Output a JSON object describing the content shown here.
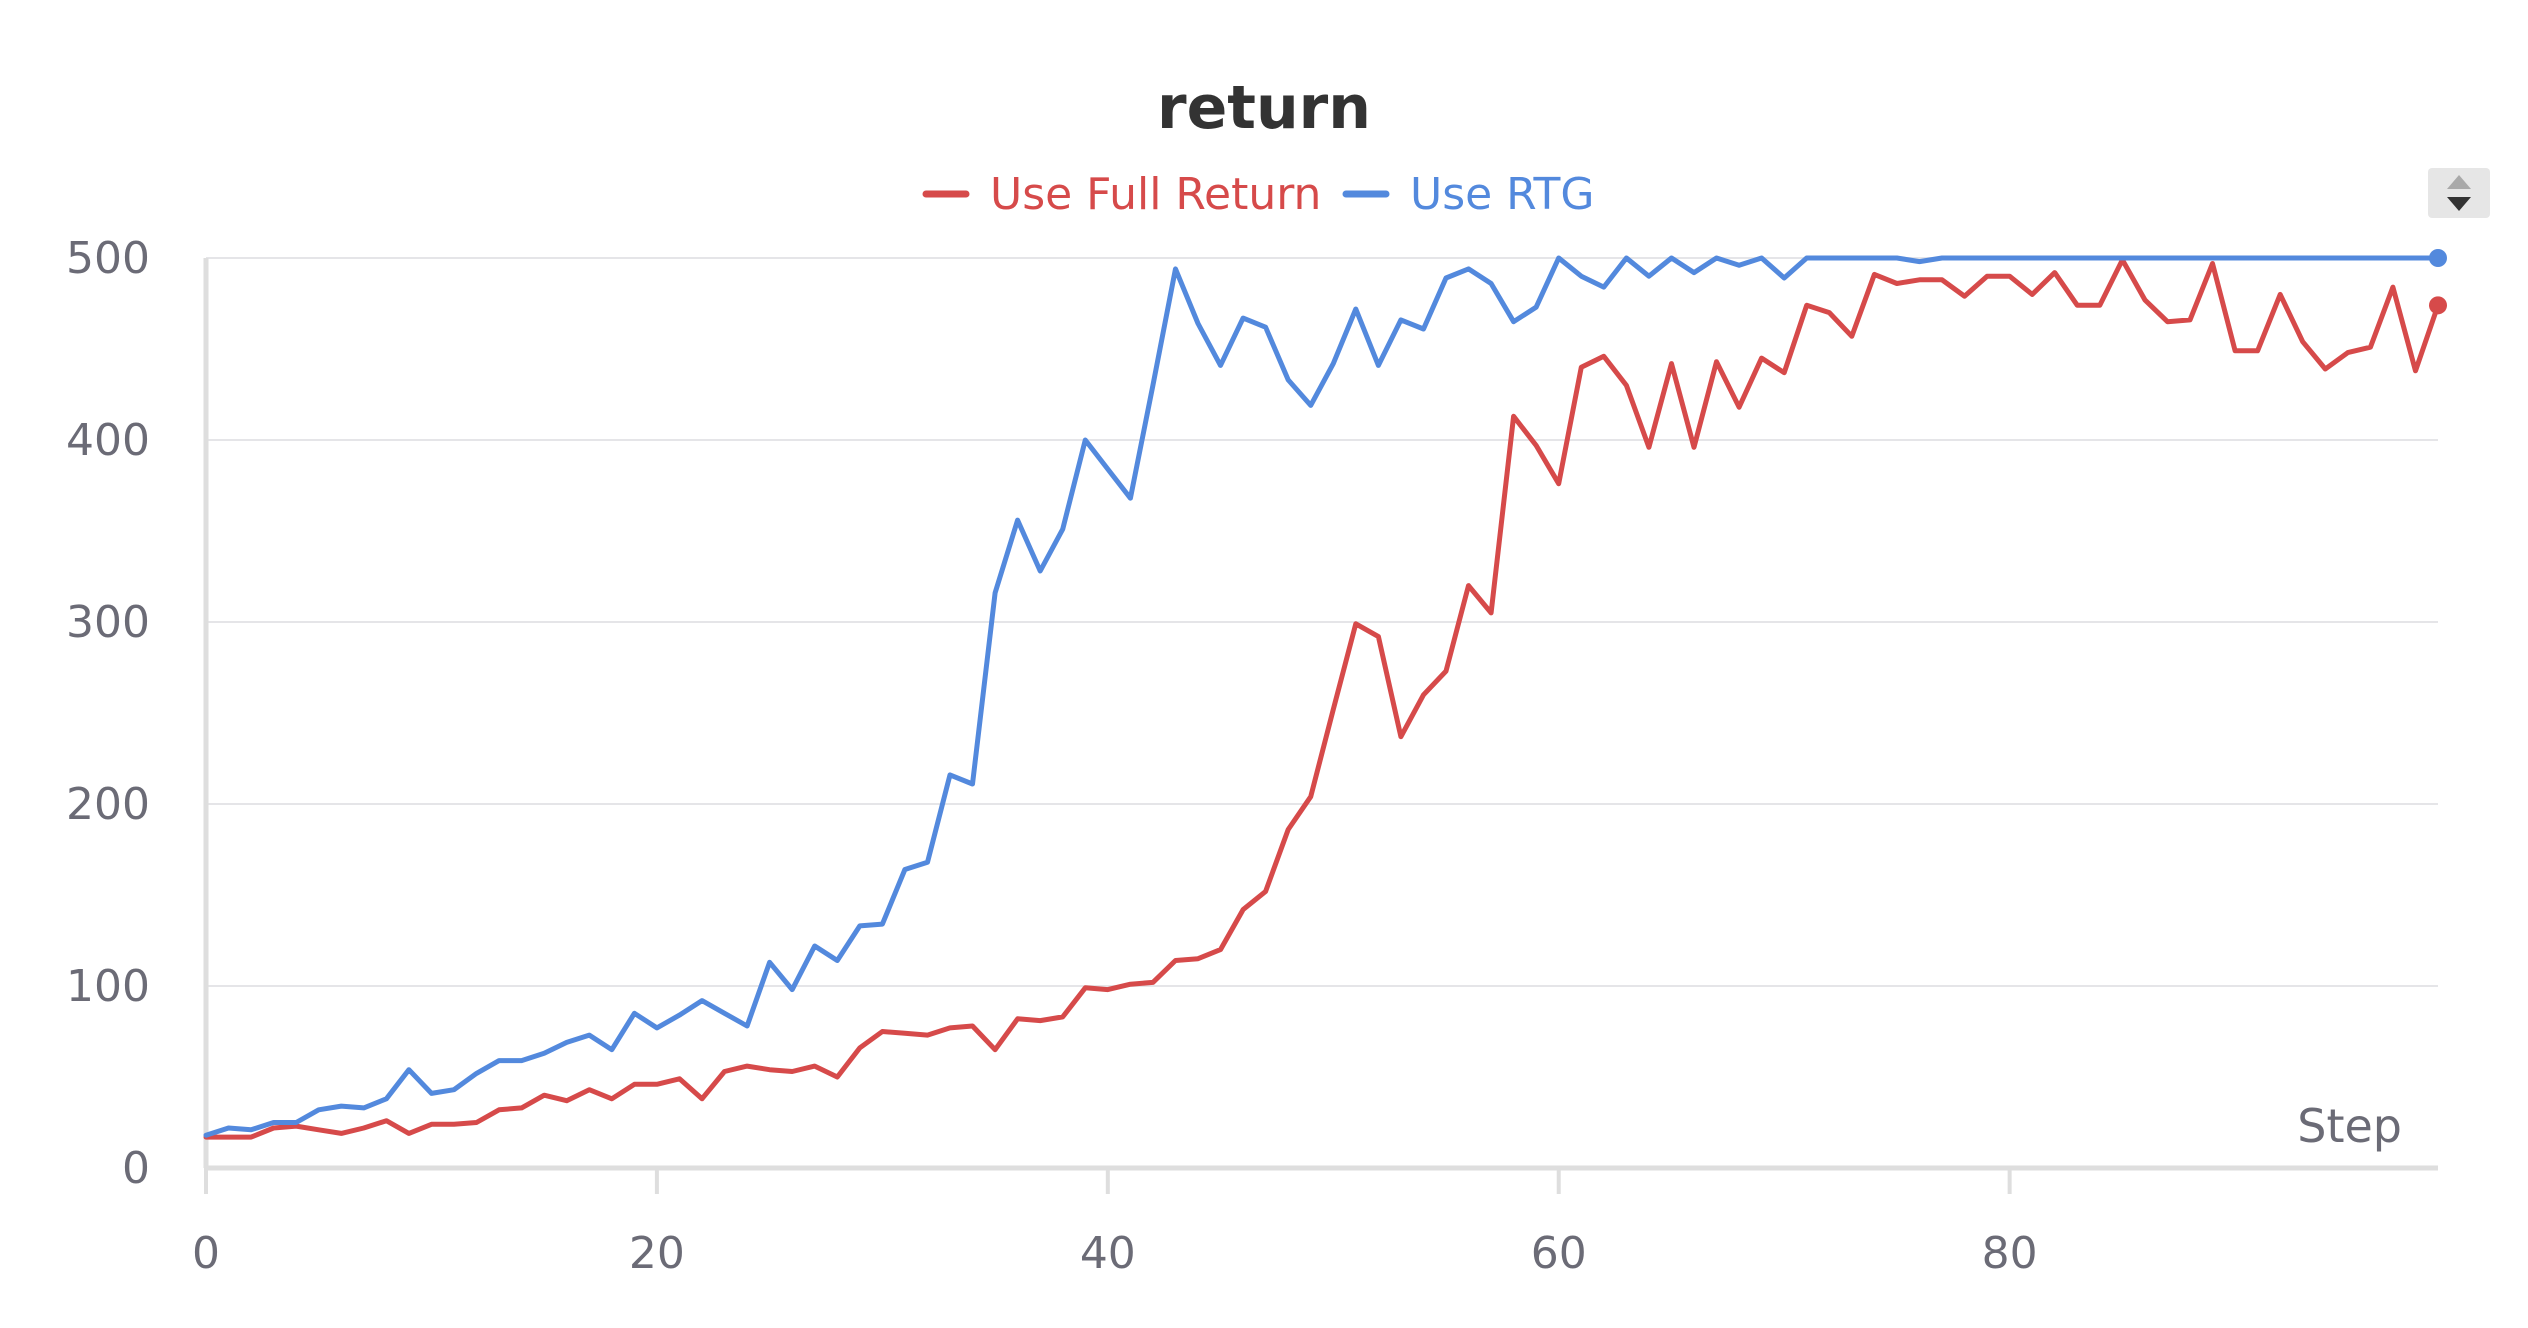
{
  "chart_data": {
    "type": "line",
    "title": "return",
    "xlabel": "Step",
    "ylabel": "",
    "xlim": [
      0,
      99
    ],
    "ylim": [
      0,
      500
    ],
    "xticks": [
      0,
      20,
      40,
      60,
      80
    ],
    "yticks": [
      0,
      100,
      200,
      300,
      400,
      500
    ],
    "grid": true,
    "legend_position": "top-center",
    "x": [
      0,
      1,
      2,
      3,
      4,
      5,
      6,
      7,
      8,
      9,
      10,
      11,
      12,
      13,
      14,
      15,
      16,
      17,
      18,
      19,
      20,
      21,
      22,
      23,
      24,
      25,
      26,
      27,
      28,
      29,
      30,
      31,
      32,
      33,
      34,
      35,
      36,
      37,
      38,
      39,
      40,
      41,
      42,
      43,
      44,
      45,
      46,
      47,
      48,
      49,
      50,
      51,
      52,
      53,
      54,
      55,
      56,
      57,
      58,
      59,
      60,
      61,
      62,
      63,
      64,
      65,
      66,
      67,
      68,
      69,
      70,
      71,
      72,
      73,
      74,
      75,
      76,
      77,
      78,
      79,
      80,
      81,
      82,
      83,
      84,
      85,
      86,
      87,
      88,
      89,
      90,
      91,
      92,
      93,
      94,
      95,
      96,
      97,
      98,
      99
    ],
    "series": [
      {
        "name": "Use Full Return",
        "color": "#d64a4a",
        "values": [
          17,
          17,
          17,
          22,
          23,
          21,
          19,
          22,
          26,
          19,
          24,
          24,
          25,
          32,
          33,
          40,
          37,
          43,
          38,
          46,
          46,
          49,
          38,
          53,
          56,
          54,
          53,
          56,
          50,
          66,
          75,
          74,
          73,
          77,
          78,
          65,
          82,
          81,
          83,
          99,
          98,
          101,
          102,
          114,
          115,
          120,
          142,
          152,
          186,
          204,
          252,
          299,
          292,
          237,
          260,
          273,
          320,
          305,
          413,
          397,
          376,
          440,
          446,
          430,
          396,
          442,
          396,
          443,
          418,
          445,
          437,
          474,
          470,
          457,
          491,
          486,
          488,
          488,
          479,
          490,
          490,
          480,
          492,
          474,
          474,
          499,
          477,
          465,
          466,
          497,
          449,
          449,
          480,
          454,
          439,
          448,
          451,
          484,
          438,
          474
        ]
      },
      {
        "name": "Use RTG",
        "color": "#5389dd",
        "values": [
          18,
          22,
          21,
          25,
          25,
          32,
          34,
          33,
          38,
          54,
          41,
          43,
          52,
          59,
          59,
          63,
          69,
          73,
          65,
          85,
          77,
          84,
          92,
          85,
          78,
          113,
          98,
          122,
          114,
          133,
          134,
          164,
          168,
          216,
          211,
          316,
          356,
          328,
          351,
          400,
          384,
          368,
          430,
          494,
          464,
          441,
          467,
          462,
          433,
          419,
          442,
          472,
          441,
          466,
          461,
          489,
          494,
          486,
          465,
          473,
          500,
          490,
          484,
          500,
          490,
          500,
          492,
          500,
          496,
          500,
          489,
          500,
          500,
          500,
          500,
          500,
          498,
          500,
          500,
          500,
          500,
          500,
          500,
          500,
          500,
          500,
          500,
          500,
          500,
          500,
          500,
          500,
          500,
          500,
          500,
          500,
          500,
          500,
          500,
          500
        ]
      }
    ]
  }
}
